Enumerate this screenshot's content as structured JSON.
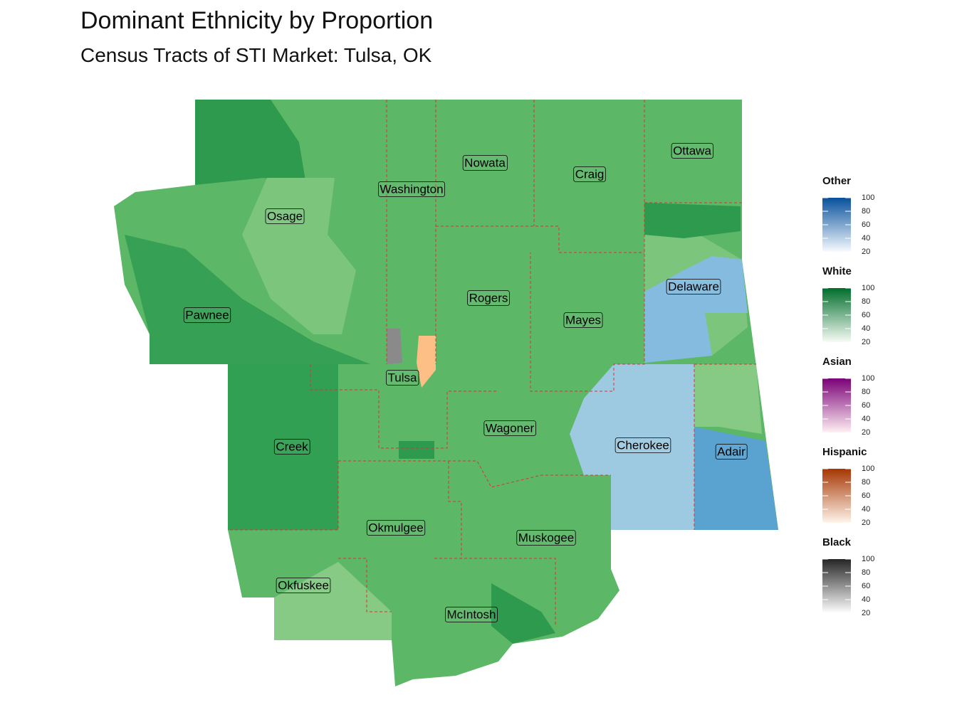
{
  "header": {
    "title": "Dominant Ethnicity by Proportion",
    "subtitle": "Census Tracts of STI Market: Tulsa, OK"
  },
  "counties": [
    {
      "label": "Osage"
    },
    {
      "label": "Pawnee"
    },
    {
      "label": "Washington"
    },
    {
      "label": "Nowata"
    },
    {
      "label": "Craig"
    },
    {
      "label": "Ottawa"
    },
    {
      "label": "Delaware"
    },
    {
      "label": "Rogers"
    },
    {
      "label": "Mayes"
    },
    {
      "label": "Tulsa"
    },
    {
      "label": "Creek"
    },
    {
      "label": "Wagoner"
    },
    {
      "label": "Cherokee"
    },
    {
      "label": "Adair"
    },
    {
      "label": "Okmulgee"
    },
    {
      "label": "Muskogee"
    },
    {
      "label": "Okfuskee"
    },
    {
      "label": "McIntosh"
    }
  ],
  "legend": [
    {
      "title": "Other",
      "ticks": [
        20,
        40,
        60,
        80,
        100
      ],
      "colors": [
        "#f7fbff",
        "#08519c"
      ]
    },
    {
      "title": "White",
      "ticks": [
        20,
        40,
        60,
        80,
        100
      ],
      "colors": [
        "#f7fcf5",
        "#006d2c"
      ]
    },
    {
      "title": "Asian",
      "ticks": [
        20,
        40,
        60,
        80,
        100
      ],
      "colors": [
        "#fff0f3",
        "#7a0177"
      ]
    },
    {
      "title": "Hispanic",
      "ticks": [
        20,
        40,
        60,
        80,
        100
      ],
      "colors": [
        "#fff5eb",
        "#a63603"
      ]
    },
    {
      "title": "Black",
      "ticks": [
        20,
        40,
        60,
        80,
        100
      ],
      "colors": [
        "#ffffff",
        "#252525"
      ]
    }
  ]
}
